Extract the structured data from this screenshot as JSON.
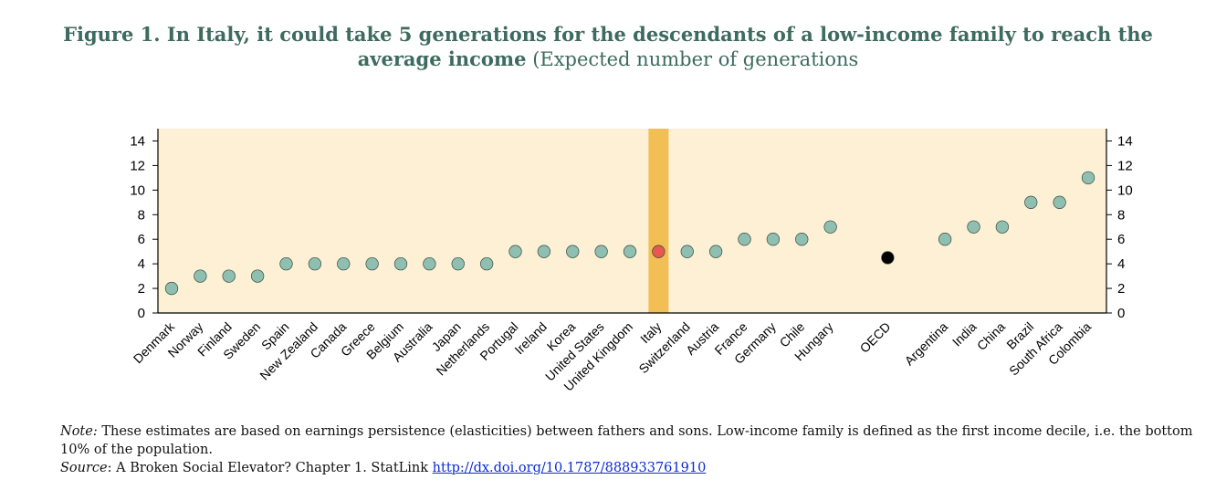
{
  "title": {
    "bold": "Figure 1. In Italy, it could take 5 generations for the descendants of a low-income family to reach the average income",
    "normal": " (Expected number of generations"
  },
  "note": {
    "note_label": "Note:",
    "note_text": " These estimates are based on earnings persistence (elasticities) between fathers and sons. Low-income family is defined as the first income decile, i.e. the bottom 10% of the population.",
    "source_label": "Source",
    "source_text": ": A Broken Social Elevator? Chapter 1. StatLink ",
    "link_text": "http://dx.doi.org/10.1787/888933761910"
  },
  "chart_data": {
    "type": "scatter",
    "title": "Figure 1. In Italy, it could take 5 generations for the descendants of a low-income family to reach the average income (Expected number of generations",
    "xlabel": "",
    "ylabel": "",
    "ylim": [
      0,
      15
    ],
    "yticks": [
      0,
      2,
      4,
      6,
      8,
      10,
      12,
      14
    ],
    "highlight_category": "Italy",
    "categories": [
      "Denmark",
      "Norway",
      "Finland",
      "Sweden",
      "Spain",
      "New Zealand",
      "Canada",
      "Greece",
      "Belgium",
      "Australia",
      "Japan",
      "Netherlands",
      "Portugal",
      "Ireland",
      "Korea",
      "United States",
      "United Kingdom",
      "Italy",
      "Switzerland",
      "Austria",
      "France",
      "Germany",
      "Chile",
      "Hungary",
      "",
      "OECD",
      "",
      "Argentina",
      "India",
      "China",
      "Brazil",
      "South Africa",
      "Colombia"
    ],
    "values": [
      2,
      3,
      3,
      3,
      4,
      4,
      4,
      4,
      4,
      4,
      4,
      4,
      5,
      5,
      5,
      5,
      5,
      5,
      5,
      5,
      6,
      6,
      6,
      7,
      null,
      4.5,
      null,
      6,
      7,
      7,
      9,
      9,
      11
    ],
    "colors": {
      "background": "#fdf0d5",
      "highlight_band": "#f2bf55",
      "dot": "#8fbfb0",
      "highlight_dot": "#e8584f",
      "oecd_dot": "#000000",
      "axis": "#000000"
    }
  }
}
